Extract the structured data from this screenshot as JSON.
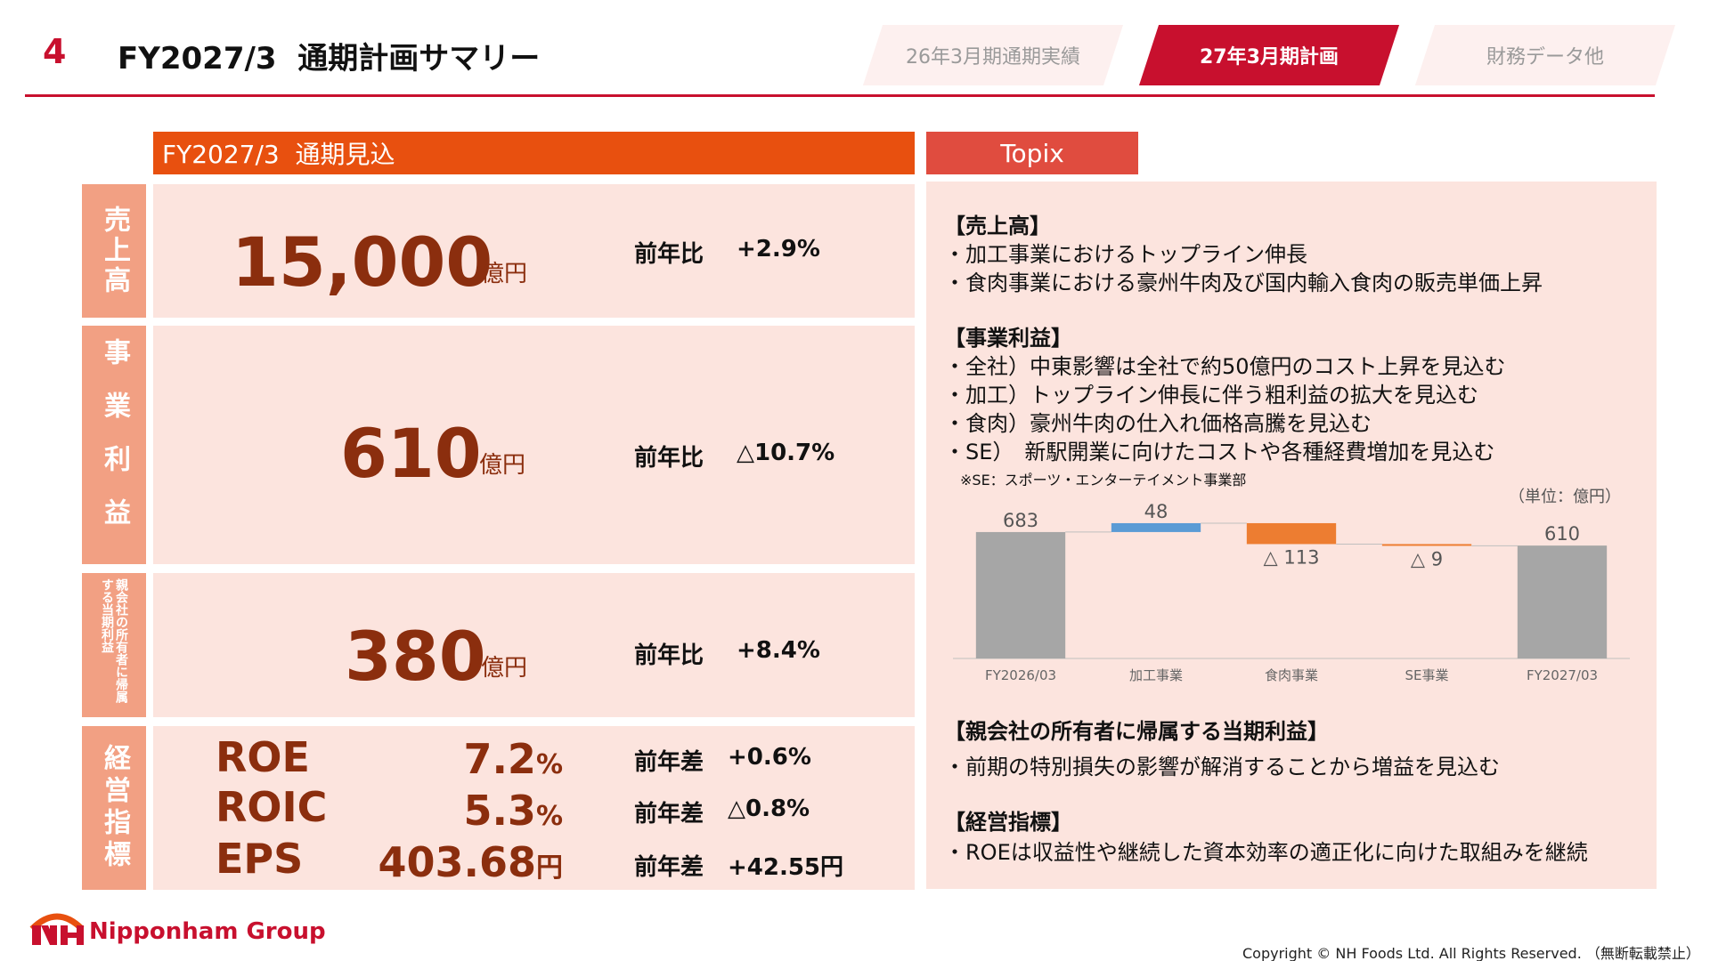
{
  "header": {
    "page_number": "4",
    "title": "FY2027/3  通期計画サマリー",
    "tabs": [
      {
        "label": "26年3月期通期実績",
        "active": false
      },
      {
        "label": "27年3月期計画",
        "active": true
      },
      {
        "label": "財務データ他",
        "active": false
      }
    ]
  },
  "left": {
    "section_title": "FY2027/3  通期見込",
    "rows": {
      "sales": {
        "label": "売上高",
        "value": "15,000",
        "unit": "億円",
        "cmp_label": "前年比",
        "cmp_value": "+2.9%"
      },
      "profit": {
        "label": "事業利益",
        "value": "610",
        "unit": "億円",
        "cmp_label": "前年比",
        "cmp_value": "△10.7%"
      },
      "net": {
        "label": "親会社の所有者に帰属する当期利益",
        "value": "380",
        "unit": "億円",
        "cmp_label": "前年比",
        "cmp_value": "+8.4%"
      }
    },
    "kpi": {
      "label": "経営指標",
      "items": [
        {
          "name": "ROE",
          "value": "7.2",
          "unit": "%",
          "cmp_label": "前年差",
          "cmp_value": "+0.6%"
        },
        {
          "name": "ROIC",
          "value": "5.3",
          "unit": "%",
          "cmp_label": "前年差",
          "cmp_value": "△0.8%"
        },
        {
          "name": "EPS",
          "value": "403.68",
          "unit": "円",
          "cmp_label": "前年差",
          "cmp_value": "+42.55円"
        }
      ]
    }
  },
  "topix": {
    "title": "Topix",
    "sales_heading": "【売上高】",
    "sales_items": [
      "・加工事業におけるトップライン伸長",
      "・食肉事業における豪州牛肉及び国内輸入食肉の販売単価上昇"
    ],
    "profit_heading": "【事業利益】",
    "profit_items": [
      "・全社）中東影響は全社で約50億円のコスト上昇を見込む",
      "・加工）トップライン伸長に伴う粗利益の拡大を見込む",
      "・食肉）豪州牛肉の仕入れ価格高騰を見込む",
      "・SE）　新駅開業に向けたコストや各種経費増加を見込む"
    ],
    "note": "※SE：スポーツ・エンターテイメント事業部",
    "net_heading": "【親会社の所有者に帰属する当期利益】",
    "net_items": [
      "・前期の特別損失の影響が解消することから増益を見込む"
    ],
    "kpi_heading": "【経営指標】",
    "kpi_items": [
      "・ROEは収益性や継続した資本効率の適正化に向けた取組みを継続"
    ]
  },
  "chart_data": {
    "type": "bar",
    "subtype": "waterfall",
    "unit_label": "（単位：億円）",
    "categories": [
      "FY2026/03",
      "加工事業",
      "食肉事業",
      "SE事業",
      "FY2027/03"
    ],
    "values": [
      683,
      48,
      -113,
      -9,
      610
    ],
    "value_labels": [
      "683",
      "48",
      "△ 113",
      "△ 9",
      "610"
    ],
    "kinds": [
      "total",
      "delta",
      "delta",
      "delta",
      "total"
    ],
    "colors": [
      "#a6a6a6",
      "#5b9bd5",
      "#ed7d31",
      "#ed7d31",
      "#a6a6a6"
    ],
    "ylim": [
      0,
      750
    ]
  },
  "footer": {
    "logo_text": "Nipponham Group",
    "copyright": "Copyright © NH Foods Ltd. All Rights Reserved.  （無断転載禁止）"
  }
}
